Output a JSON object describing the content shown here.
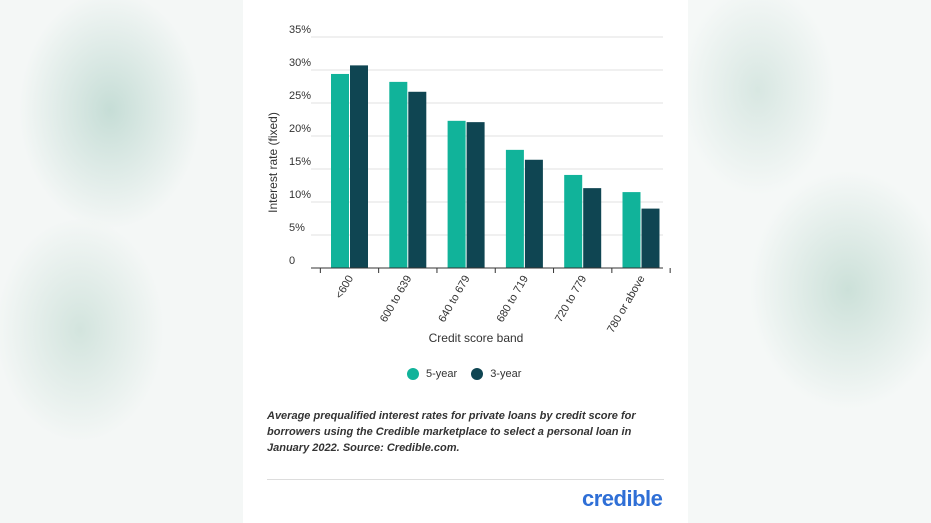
{
  "chart_data": {
    "type": "bar",
    "categories": [
      "<600",
      "600 to 639",
      "640 to 679",
      "680 to 719",
      "720 to 779",
      "780 or above"
    ],
    "series": [
      {
        "name": "5-year",
        "values": [
          29.4,
          28.2,
          22.3,
          17.9,
          14.1,
          11.5
        ]
      },
      {
        "name": "3-year",
        "values": [
          30.7,
          26.7,
          22.1,
          16.4,
          12.1,
          9.0
        ]
      }
    ],
    "xlabel": "Credit score band",
    "ylabel": "Interest rate (fixed)",
    "ylim": [
      0,
      35
    ],
    "yticks": [
      0,
      5,
      10,
      15,
      20,
      25,
      30,
      35
    ],
    "ytick_labels": [
      "0",
      "5%",
      "10%",
      "15%",
      "20%",
      "25%",
      "30%",
      "35%"
    ],
    "grid": true,
    "legend_position": "bottom",
    "colors": {
      "five_year": "#11b39a",
      "three_year": "#0f4552"
    }
  },
  "caption": "Average prequalified interest rates for private loans by credit score for borrowers using the Credible marketplace to select a personal loan in January 2022. Source: Credible.com.",
  "logo_text": "credible"
}
